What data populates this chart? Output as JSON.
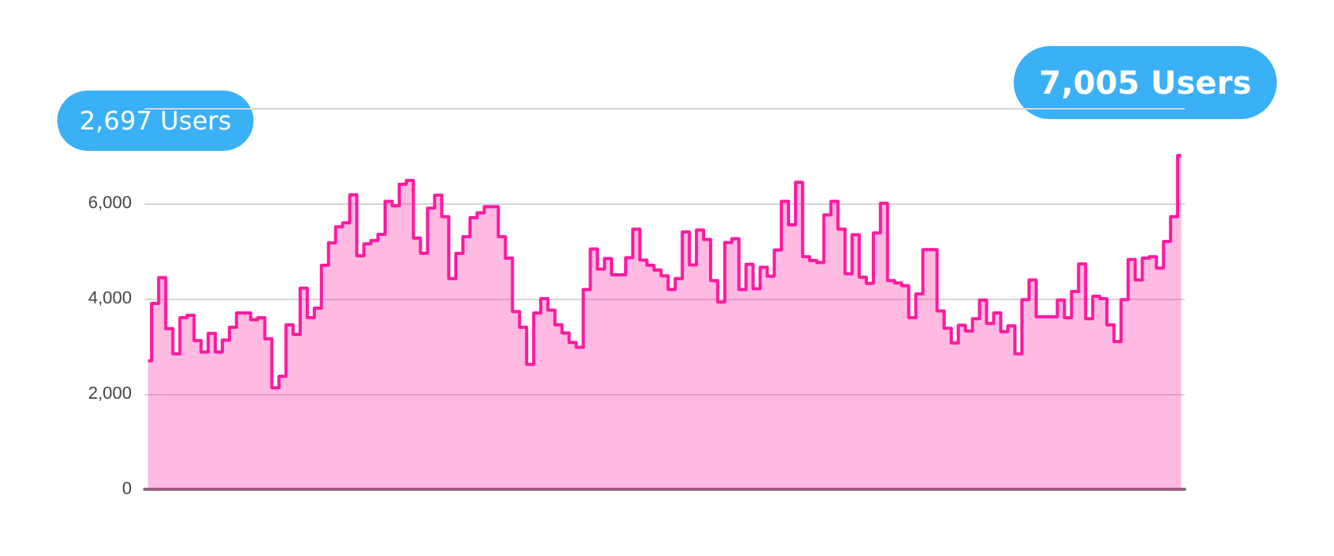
{
  "chart_data": {
    "type": "area",
    "categories": [
      null,
      null,
      null,
      null,
      null,
      null,
      null,
      null,
      null,
      null,
      null,
      null,
      null,
      null,
      null,
      null,
      null,
      null,
      null,
      null,
      null,
      null,
      null,
      null,
      null,
      null,
      null,
      null,
      null,
      null,
      null,
      null,
      null,
      null,
      null,
      null,
      null,
      null,
      null,
      null,
      null,
      null,
      null,
      null,
      null,
      null,
      null,
      null,
      null,
      null,
      null,
      null,
      null,
      null,
      null,
      null,
      null,
      null,
      null,
      null,
      null,
      null,
      null,
      null,
      null,
      null,
      null,
      null,
      null,
      null,
      null,
      null,
      null,
      null,
      null,
      null,
      null,
      null,
      null,
      null,
      null,
      null,
      null,
      null,
      null,
      null,
      null,
      null,
      null,
      null,
      null,
      null,
      null,
      null,
      null,
      null,
      null,
      null,
      null,
      null,
      null,
      null,
      null,
      null,
      null,
      null,
      null,
      null,
      null,
      null,
      null,
      null,
      null,
      null,
      null,
      null,
      null,
      null,
      null,
      null,
      null,
      null,
      null,
      null,
      null,
      null,
      null,
      null,
      null,
      null,
      null,
      null,
      null,
      null,
      null,
      null,
      null,
      null,
      null,
      null,
      null,
      null,
      null,
      null,
      null,
      null,
      null
    ],
    "series": [
      {
        "color": "#ff1aa0",
        "values": [
          2697,
          3900,
          4440,
          3370,
          2840,
          3600,
          3650,
          3120,
          2880,
          3270,
          2880,
          3130,
          3400,
          3700,
          3700,
          3560,
          3600,
          3160,
          2130,
          2370,
          3450,
          3250,
          4220,
          3600,
          3800,
          4700,
          5170,
          5510,
          5590,
          6180,
          4900,
          5150,
          5220,
          5350,
          6040,
          5950,
          6400,
          6480,
          5270,
          4950,
          5900,
          6170,
          5720,
          4420,
          4950,
          5300,
          5700,
          5800,
          5930,
          5930,
          5300,
          4850,
          3730,
          3400,
          2620,
          3700,
          4000,
          3760,
          3450,
          3280,
          3080,
          2980,
          4190,
          5040,
          4620,
          4840,
          4500,
          4500,
          4860,
          5460,
          4810,
          4700,
          4600,
          4480,
          4190,
          4420,
          5400,
          4710,
          5440,
          5240,
          4380,
          3930,
          5180,
          5260,
          4190,
          4720,
          4210,
          4660,
          4470,
          5020,
          6040,
          5550,
          6440,
          4880,
          4800,
          4760,
          5760,
          6040,
          5460,
          4520,
          5340,
          4450,
          4320,
          5380,
          6000,
          4380,
          4330,
          4270,
          3600,
          4100,
          5030,
          5030,
          3740,
          3380,
          3070,
          3440,
          3320,
          3580,
          3970,
          3480,
          3700,
          3310,
          3430,
          2840,
          3980,
          4390,
          3620,
          3620,
          3620,
          3970,
          3600,
          4150,
          4730,
          3580,
          4050,
          4000,
          3450,
          3100,
          3980,
          4820,
          4390,
          4850,
          4880,
          4640,
          5200,
          5720,
          7005
        ]
      }
    ],
    "ylim": [
      0,
      8000
    ],
    "yticks": [
      0,
      {
        "value": 2000,
        "label": "2,000"
      },
      {
        "value": 4000,
        "label": "4,000"
      },
      {
        "value": 6000,
        "label": "6,000"
      },
      {
        "value": 8000,
        "label": null
      }
    ],
    "grid": "y",
    "annotations": [
      "2,697 Users",
      "7,005 Users"
    ]
  }
}
